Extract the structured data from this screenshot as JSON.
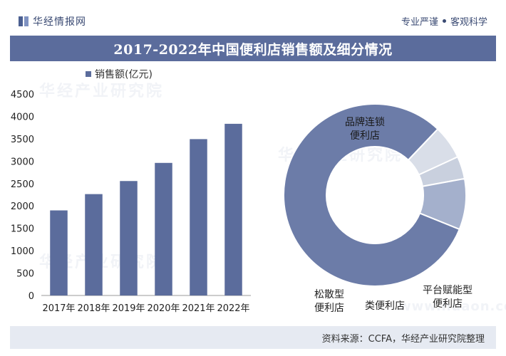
{
  "header": {
    "logo_text": "华经情报网",
    "slogan_left": "专业严谨",
    "slogan_right": "客观科学"
  },
  "title": "2017-2022年中国便利店销售额及细分情况",
  "footer": {
    "source": "资料来源：CCFA，华经产业研究院整理"
  },
  "watermark": {
    "text": "华经产业研究院",
    "url": "www.huaon.com"
  },
  "colors": {
    "accent": "#5b6c9c",
    "donut_main": "#6c7ca8",
    "donut_minor_1": "#d9dee8",
    "donut_minor_2": "#c9d0de",
    "donut_minor_3": "#a4b0cc"
  },
  "chart_data": [
    {
      "type": "bar",
      "title": "",
      "legend": "销售额(亿元)",
      "categories": [
        "2017年",
        "2018年",
        "2019年",
        "2020年",
        "2021年",
        "2022年"
      ],
      "values": [
        1900,
        2264,
        2556,
        2961,
        3492,
        3834
      ],
      "ylim": [
        0,
        4500
      ],
      "yticks": [
        0,
        500,
        1000,
        1500,
        2000,
        2500,
        3000,
        3500,
        4000,
        4500
      ],
      "xlabel": "",
      "ylabel": ""
    },
    {
      "type": "pie",
      "donut": true,
      "labels": [
        "品牌连锁便利店",
        "松散型便利店",
        "类便利店",
        "平台赋能型便利店"
      ],
      "label_lines": [
        [
          "品牌连锁",
          "便利店"
        ],
        [
          "松散型",
          "便利店"
        ],
        [
          "类便利店"
        ],
        [
          "平台赋能型",
          "便利店"
        ]
      ],
      "values": [
        81,
        6,
        4,
        9
      ]
    }
  ]
}
